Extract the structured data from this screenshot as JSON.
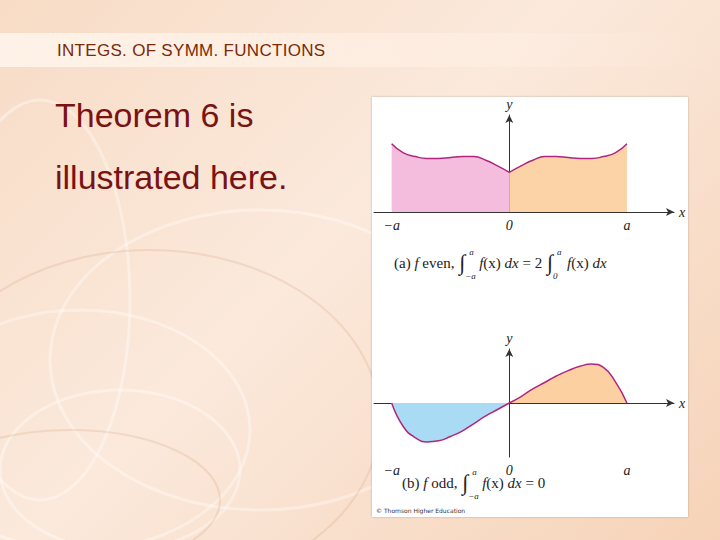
{
  "slide": {
    "header": "INTEGS. OF SYMM. FUNCTIONS",
    "body": [
      "Theorem 6 is",
      "illustrated here."
    ],
    "credit": "© Thomson Higher Education"
  },
  "chart_data": [
    {
      "type": "area",
      "x_label": "x",
      "y_label": "y",
      "xlim": [
        -1.15,
        1.4
      ],
      "xticks": [
        {
          "value": -1,
          "label": "−a"
        },
        0,
        {
          "value": 1,
          "label": "a"
        }
      ],
      "ylim": [
        0,
        10.5
      ],
      "tick_labels": "x",
      "grid": false,
      "caption": [
        "(a) ",
        {
          "i": "f"
        },
        " even, ",
        {
          "int": "∫",
          "lower": "−a",
          "upper": "a"
        },
        {
          "i": "f"
        },
        "(x) ",
        {
          "i": "dx"
        },
        " = 2 ",
        {
          "int": "∫",
          "lower": "0",
          "upper": "a"
        },
        {
          "i": "f"
        },
        "(x) ",
        {
          "i": "dx"
        }
      ],
      "series": [
        {
          "color": "#f5bddd",
          "x": [
            -1,
            -0.9,
            -0.8,
            -0.7,
            -0.6,
            -0.5,
            -0.4,
            -0.3,
            -0.2,
            -0.1,
            0
          ],
          "values": [
            7.4,
            6.4,
            6.0,
            5.8,
            5.8,
            5.9,
            6.0,
            6.0,
            5.6,
            5.0,
            4.3
          ]
        },
        {
          "color": "#fcd3a6",
          "x": [
            0,
            0.1,
            0.2,
            0.3,
            0.4,
            0.5,
            0.6,
            0.7,
            0.8,
            0.9,
            1
          ],
          "values": [
            4.3,
            5.0,
            5.6,
            6.0,
            6.0,
            5.9,
            5.8,
            5.8,
            6.0,
            6.4,
            7.4
          ]
        }
      ]
    },
    {
      "type": "area",
      "x_label": "x",
      "y_label": "y",
      "xlim": [
        -1.15,
        1.4
      ],
      "xticks": [
        {
          "value": -1,
          "label": "−a"
        },
        0,
        {
          "value": 1,
          "label": "a"
        }
      ],
      "ylim": [
        -5,
        5
      ],
      "tick_labels": "x",
      "grid": false,
      "caption": [
        "(b) ",
        {
          "i": "f"
        },
        " odd, ",
        {
          "int": "∫",
          "lower": "−a",
          "upper": "a"
        },
        {
          "i": "f"
        },
        "(x) ",
        {
          "i": "dx"
        },
        " = 0"
      ],
      "series": [
        {
          "color": "#a9dcf4",
          "x": [
            -1,
            -0.9,
            -0.8,
            -0.7,
            -0.6,
            -0.5,
            -0.4,
            -0.3,
            -0.2,
            -0.1,
            0
          ],
          "values": [
            0,
            -2.2,
            -3.2,
            -3.6,
            -3.5,
            -3.1,
            -2.6,
            -1.9,
            -1.2,
            -0.6,
            0
          ]
        },
        {
          "color": "#fcd0a0",
          "x": [
            0,
            0.1,
            0.2,
            0.3,
            0.4,
            0.5,
            0.6,
            0.7,
            0.8,
            0.9,
            1
          ],
          "values": [
            0,
            0.6,
            1.3,
            1.9,
            2.5,
            3.0,
            3.4,
            3.6,
            3.3,
            2.0,
            0
          ]
        }
      ]
    }
  ]
}
